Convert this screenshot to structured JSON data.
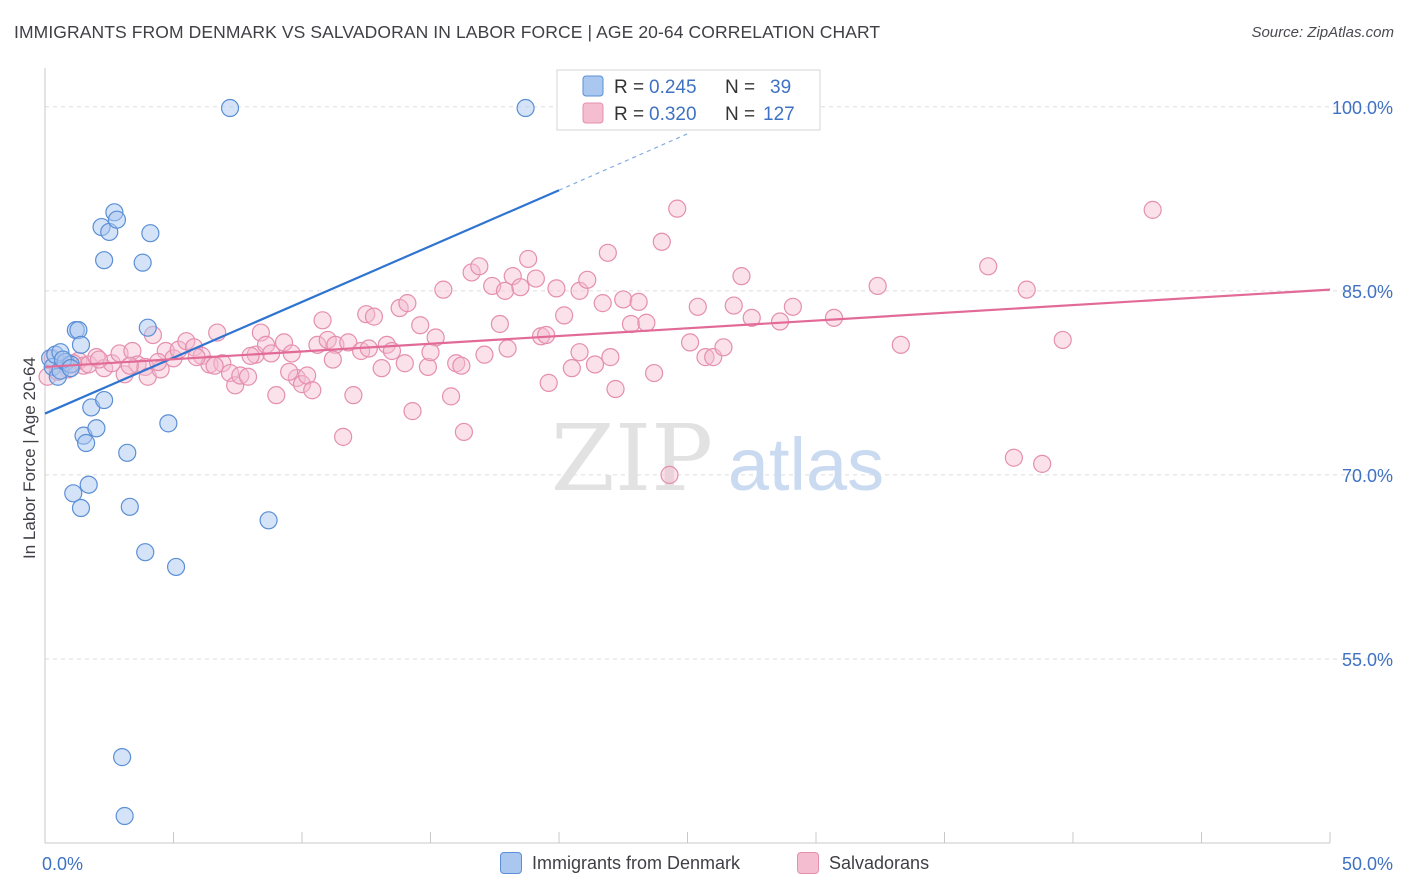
{
  "header": {
    "title": "IMMIGRANTS FROM DENMARK VS SALVADORAN IN LABOR FORCE | AGE 20-64 CORRELATION CHART",
    "source": "Source: ZipAtlas.com"
  },
  "colors": {
    "blue_fill": "#a9c7ef",
    "blue_stroke": "#5b8fd6",
    "blue_line": "#2f74d0",
    "pink_fill": "#f4bdd0",
    "pink_stroke": "#e58fae",
    "pink_line": "#e26a96",
    "tick_label": "#3f72c2",
    "grid": "#dedede",
    "axis": "#c8c8c8"
  },
  "watermark": {
    "zip": "ZIP",
    "atlas": "atlas"
  },
  "chart_data": {
    "type": "scatter",
    "title": "IMMIGRANTS FROM DENMARK VS SALVADORAN IN LABOR FORCE | AGE 20-64 CORRELATION CHART",
    "xlabel": "",
    "ylabel": "In Labor Force | Age 20-64",
    "xlim": [
      0,
      50
    ],
    "ylim": [
      40,
      103
    ],
    "x_tick_labels": [
      "0.0%",
      "50.0%"
    ],
    "y_ticks": [
      55,
      70,
      85,
      100
    ],
    "y_tick_labels": [
      "55.0%",
      "70.0%",
      "85.0%",
      "100.0%"
    ],
    "grid": true,
    "legend": {
      "position": "top-center",
      "entries": [
        {
          "r_label": "R =",
          "r_value": "0.245",
          "n_label": "N =",
          "n_value": "39"
        },
        {
          "r_label": "R =",
          "r_value": "0.320",
          "n_label": "N =",
          "n_value": "127"
        }
      ]
    },
    "series": [
      {
        "name": "Immigrants from Denmark",
        "color": "blue",
        "trend": {
          "x": [
            0,
            20
          ],
          "y": [
            75.0,
            93.2
          ],
          "dashed_to": [
            25,
            97.8
          ]
        },
        "points": [
          [
            0.2,
            79.5
          ],
          [
            0.3,
            78.8
          ],
          [
            0.4,
            79.8
          ],
          [
            0.5,
            78.0
          ],
          [
            0.6,
            80.0
          ],
          [
            0.6,
            78.5
          ],
          [
            0.8,
            79.2
          ],
          [
            1.0,
            79.0
          ],
          [
            1.1,
            68.5
          ],
          [
            1.2,
            81.8
          ],
          [
            1.3,
            81.8
          ],
          [
            1.4,
            80.6
          ],
          [
            1.4,
            67.3
          ],
          [
            1.5,
            73.2
          ],
          [
            1.6,
            72.6
          ],
          [
            1.7,
            69.2
          ],
          [
            1.8,
            75.5
          ],
          [
            2.0,
            73.8
          ],
          [
            2.2,
            90.2
          ],
          [
            2.3,
            87.5
          ],
          [
            2.3,
            76.1
          ],
          [
            2.5,
            89.8
          ],
          [
            2.7,
            91.4
          ],
          [
            2.8,
            90.8
          ],
          [
            3.0,
            47.0
          ],
          [
            3.1,
            42.2
          ],
          [
            3.2,
            71.8
          ],
          [
            3.3,
            67.4
          ],
          [
            3.8,
            87.3
          ],
          [
            3.9,
            63.7
          ],
          [
            4.0,
            82.0
          ],
          [
            4.1,
            89.7
          ],
          [
            4.8,
            74.2
          ],
          [
            5.1,
            62.5
          ],
          [
            7.2,
            99.9
          ],
          [
            8.7,
            66.3
          ],
          [
            18.7,
            99.9
          ],
          [
            0.7,
            79.4
          ],
          [
            1.0,
            78.7
          ]
        ]
      },
      {
        "name": "Salvadorans",
        "color": "pink",
        "trend": {
          "x": [
            0,
            50
          ],
          "y": [
            78.8,
            85.1
          ]
        },
        "points": [
          [
            0.1,
            78.0
          ],
          [
            0.3,
            79.5
          ],
          [
            0.7,
            79.0
          ],
          [
            0.9,
            78.6
          ],
          [
            1.3,
            79.3
          ],
          [
            1.5,
            78.9
          ],
          [
            1.7,
            79.0
          ],
          [
            2.0,
            79.6
          ],
          [
            2.3,
            78.7
          ],
          [
            2.6,
            79.1
          ],
          [
            2.9,
            79.9
          ],
          [
            3.1,
            78.2
          ],
          [
            3.4,
            80.1
          ],
          [
            3.6,
            79.0
          ],
          [
            3.9,
            78.8
          ],
          [
            4.0,
            78.0
          ],
          [
            4.2,
            81.4
          ],
          [
            4.5,
            78.6
          ],
          [
            4.7,
            80.1
          ],
          [
            5.0,
            79.5
          ],
          [
            5.2,
            80.2
          ],
          [
            5.5,
            80.9
          ],
          [
            5.8,
            80.4
          ],
          [
            6.1,
            79.7
          ],
          [
            6.4,
            79.0
          ],
          [
            6.7,
            81.6
          ],
          [
            6.9,
            79.1
          ],
          [
            7.2,
            78.3
          ],
          [
            7.4,
            77.3
          ],
          [
            7.6,
            78.1
          ],
          [
            7.9,
            78.0
          ],
          [
            8.2,
            79.8
          ],
          [
            8.4,
            81.6
          ],
          [
            8.6,
            80.6
          ],
          [
            8.8,
            79.9
          ],
          [
            9.0,
            76.5
          ],
          [
            9.3,
            80.8
          ],
          [
            9.6,
            79.9
          ],
          [
            9.8,
            77.9
          ],
          [
            10.0,
            77.4
          ],
          [
            10.2,
            78.1
          ],
          [
            10.4,
            76.9
          ],
          [
            10.6,
            80.6
          ],
          [
            10.8,
            82.6
          ],
          [
            11.0,
            81.0
          ],
          [
            11.3,
            80.6
          ],
          [
            11.6,
            73.1
          ],
          [
            11.8,
            80.8
          ],
          [
            12.0,
            76.5
          ],
          [
            12.3,
            80.1
          ],
          [
            12.5,
            83.1
          ],
          [
            12.8,
            82.9
          ],
          [
            13.1,
            78.7
          ],
          [
            13.3,
            80.6
          ],
          [
            13.5,
            80.1
          ],
          [
            13.8,
            83.6
          ],
          [
            14.1,
            84.0
          ],
          [
            14.3,
            75.2
          ],
          [
            14.6,
            82.2
          ],
          [
            14.9,
            78.8
          ],
          [
            15.2,
            81.2
          ],
          [
            15.5,
            85.1
          ],
          [
            15.8,
            76.4
          ],
          [
            16.0,
            79.1
          ],
          [
            16.3,
            73.5
          ],
          [
            16.6,
            86.5
          ],
          [
            16.9,
            87.0
          ],
          [
            17.1,
            79.8
          ],
          [
            17.4,
            85.4
          ],
          [
            17.7,
            82.3
          ],
          [
            17.9,
            85.0
          ],
          [
            18.2,
            86.2
          ],
          [
            18.5,
            85.3
          ],
          [
            18.8,
            87.6
          ],
          [
            19.1,
            86.0
          ],
          [
            19.3,
            81.3
          ],
          [
            19.6,
            77.5
          ],
          [
            19.9,
            85.2
          ],
          [
            20.2,
            83.0
          ],
          [
            20.5,
            78.7
          ],
          [
            20.8,
            85.0
          ],
          [
            21.1,
            85.9
          ],
          [
            21.4,
            79.0
          ],
          [
            21.7,
            84.0
          ],
          [
            21.9,
            88.1
          ],
          [
            22.2,
            77.0
          ],
          [
            22.5,
            84.3
          ],
          [
            22.8,
            82.3
          ],
          [
            23.1,
            84.1
          ],
          [
            23.4,
            82.4
          ],
          [
            23.7,
            78.3
          ],
          [
            24.0,
            89.0
          ],
          [
            24.3,
            70.0
          ],
          [
            24.6,
            91.7
          ],
          [
            25.1,
            80.8
          ],
          [
            25.4,
            83.7
          ],
          [
            25.7,
            79.6
          ],
          [
            26.0,
            79.6
          ],
          [
            26.4,
            80.4
          ],
          [
            26.8,
            83.8
          ],
          [
            27.1,
            86.2
          ],
          [
            27.5,
            82.8
          ],
          [
            28.6,
            82.5
          ],
          [
            29.1,
            83.7
          ],
          [
            30.7,
            82.8
          ],
          [
            32.4,
            85.4
          ],
          [
            33.3,
            80.6
          ],
          [
            36.7,
            87.0
          ],
          [
            37.7,
            71.4
          ],
          [
            38.2,
            85.1
          ],
          [
            38.8,
            70.9
          ],
          [
            39.6,
            81.0
          ],
          [
            43.1,
            91.6
          ],
          [
            0.5,
            78.4
          ],
          [
            1.1,
            79.1
          ],
          [
            2.1,
            79.4
          ],
          [
            3.3,
            78.9
          ],
          [
            4.4,
            79.2
          ],
          [
            5.9,
            79.6
          ],
          [
            6.6,
            78.9
          ],
          [
            8.0,
            79.7
          ],
          [
            9.5,
            78.4
          ],
          [
            11.2,
            79.4
          ],
          [
            12.6,
            80.3
          ],
          [
            14.0,
            79.1
          ],
          [
            15.0,
            80.0
          ],
          [
            16.2,
            78.9
          ],
          [
            18.0,
            80.3
          ],
          [
            19.5,
            81.4
          ],
          [
            20.8,
            80.0
          ],
          [
            22.0,
            79.6
          ]
        ]
      }
    ]
  },
  "bottom_legend": [
    {
      "label": "Immigrants from Denmark"
    },
    {
      "label": "Salvadorans"
    }
  ]
}
